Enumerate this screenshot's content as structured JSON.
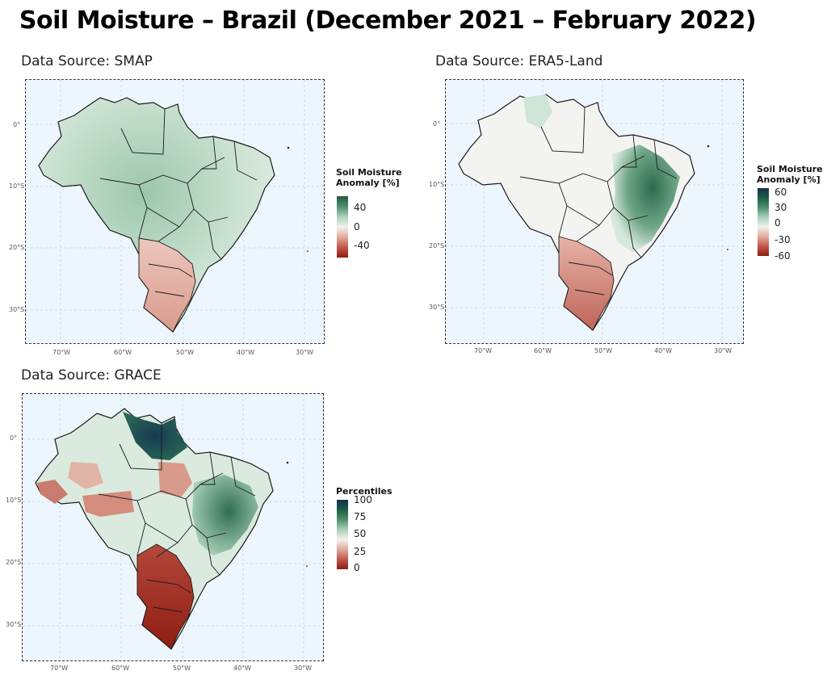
{
  "title": "Soil Moisture – Brazil (December 2021 – February 2022)",
  "panels": [
    {
      "id": "smap",
      "source_label": "Data Source: SMAP",
      "legend": {
        "title": "Soil Moisture\nAnomaly [%]",
        "ticks": [
          "40",
          "0",
          "-40"
        ],
        "colors": [
          "#27553f",
          "#4f8f6c",
          "#a9d0b9",
          "#f4f1ee",
          "#e0ab9c",
          "#c0574a",
          "#8f1d12"
        ]
      },
      "lat_labels": [
        "0°",
        "10°S",
        "20°S",
        "30°S"
      ],
      "lon_labels": [
        "70°W",
        "60°W",
        "50°W",
        "40°W",
        "30°W"
      ]
    },
    {
      "id": "era5",
      "source_label": "Data Source: ERA5-Land",
      "legend": {
        "title": "Soil Moisture\nAnomaly [%]",
        "ticks": [
          "60",
          "30",
          "0",
          "-30",
          "-60"
        ],
        "colors": [
          "#14304f",
          "#1d5d45",
          "#4f8f6c",
          "#a9d0b9",
          "#f4f1ee",
          "#e0ab9c",
          "#c0574a",
          "#8f1d12"
        ]
      },
      "lat_labels": [
        "0°",
        "10°S",
        "20°S",
        "30°S"
      ],
      "lon_labels": [
        "70°W",
        "60°W",
        "50°W",
        "40°W",
        "30°W"
      ]
    },
    {
      "id": "grace",
      "source_label": "Data Source: GRACE",
      "legend": {
        "title": "Percentiles",
        "ticks": [
          "100",
          "75",
          "50",
          "25",
          "0"
        ],
        "colors": [
          "#14304f",
          "#1d5d45",
          "#4f8f6c",
          "#a9d0b9",
          "#f4f1ee",
          "#e0ab9c",
          "#c0574a",
          "#8f1d12"
        ]
      },
      "lat_labels": [
        "0°",
        "10°S",
        "20°S",
        "30°S"
      ],
      "lon_labels": [
        "70°W",
        "60°W",
        "50°W",
        "40°W",
        "30°W"
      ]
    }
  ]
}
